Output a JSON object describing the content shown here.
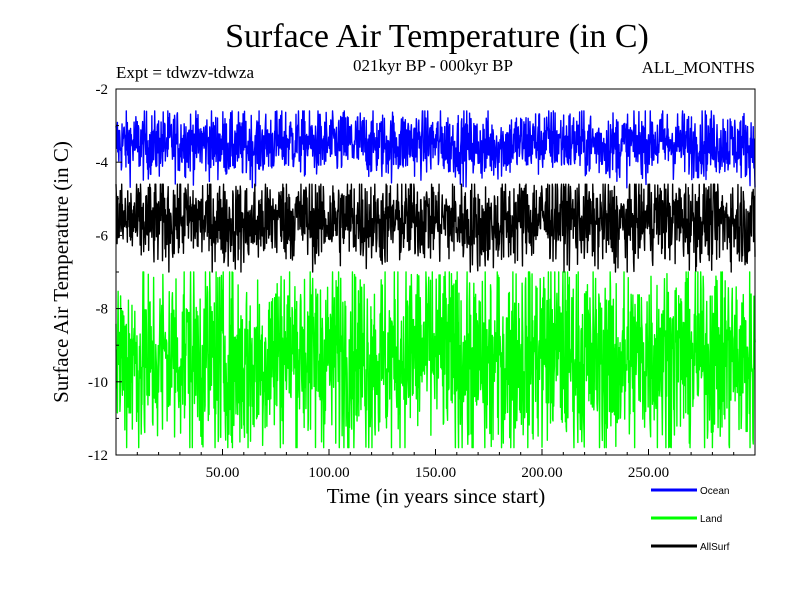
{
  "chart_data": {
    "type": "line",
    "title": "Surface Air Temperature (in C)",
    "subtitle": "021kyr BP - 000kyr BP",
    "experiment_label": "Expt = tdwzv-tdwza",
    "season_label": "ALL_MONTHS",
    "xlabel": "Time (in years since start)",
    "ylabel": "Surface Air Temperature (in C)",
    "xlim": [
      0,
      300
    ],
    "ylim": [
      -12,
      -2
    ],
    "xticks": [
      50,
      100,
      150,
      200,
      250
    ],
    "xtick_labels": [
      "50.00",
      "100.00",
      "150.00",
      "200.00",
      "250.00"
    ],
    "yticks": [
      -12,
      -10,
      -8,
      -6,
      -4,
      -2
    ],
    "ytick_labels": [
      "-12",
      "-10",
      "-8",
      "-6",
      "-4",
      "-2"
    ],
    "grid": false,
    "legend_position": "bottom-right",
    "series": [
      {
        "name": "Ocean",
        "color": "#0000ff",
        "mean": -3.5,
        "spread": 0.45,
        "min": -4.7,
        "max": -2.6,
        "values": [
          -3.4,
          -3.6,
          -3.3,
          -3.5,
          -3.7,
          -3.2,
          -3.5,
          -3.4,
          -3.6,
          -3.3,
          -3.5,
          -3.8,
          -3.4,
          -3.2,
          -3.5,
          -3.6,
          -3.3,
          -3.5,
          -3.4,
          -3.7
        ]
      },
      {
        "name": "Land",
        "color": "#00ff00",
        "mean": -9.3,
        "spread": 1.3,
        "min": -11.8,
        "max": -7.0,
        "values": [
          -9.2,
          -9.8,
          -8.9,
          -9.5,
          -10.1,
          -8.6,
          -9.3,
          -9.0,
          -9.7,
          -8.8,
          -9.4,
          -10.2,
          -9.1,
          -8.7,
          -9.6,
          -9.9,
          -8.9,
          -9.3,
          -9.2,
          -9.8
        ]
      },
      {
        "name": "AllSurf",
        "color": "#000000",
        "mean": -5.6,
        "spread": 0.6,
        "min": -7.0,
        "max": -4.6,
        "values": [
          -5.5,
          -5.8,
          -5.3,
          -5.7,
          -6.0,
          -5.2,
          -5.6,
          -5.4,
          -5.8,
          -5.3,
          -5.6,
          -6.1,
          -5.5,
          -5.2,
          -5.7,
          -5.9,
          -5.3,
          -5.6,
          -5.5,
          -5.9
        ]
      }
    ]
  }
}
